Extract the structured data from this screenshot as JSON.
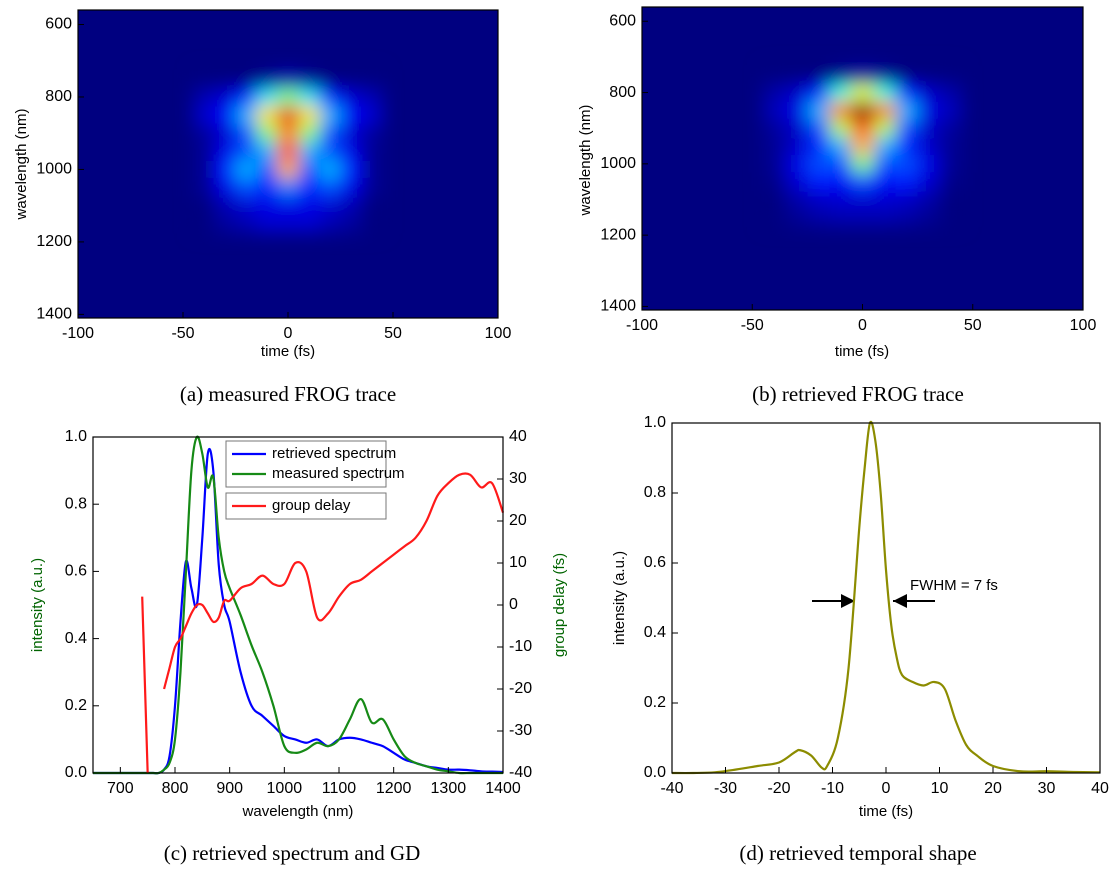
{
  "chart_data": [
    {
      "type": "heatmap",
      "caption": "(a) measured FROG trace",
      "x_label": "time (fs)",
      "y_label": "wavelength (nm)",
      "colormap": "jet",
      "y_reversed": true,
      "xlim": [
        -100,
        100
      ],
      "xticks": [
        -100,
        -50,
        0,
        50,
        100
      ],
      "ylim": [
        560,
        1410
      ],
      "yticks": [
        600,
        800,
        1000,
        1200,
        1400
      ],
      "x": [
        -40,
        -30,
        -20,
        -10,
        0,
        10,
        20,
        30,
        40
      ],
      "y": [
        750,
        800,
        850,
        900,
        950,
        1000,
        1050,
        1100,
        1150
      ],
      "z": [
        [
          0,
          0,
          0,
          0.02,
          0.05,
          0.02,
          0,
          0,
          0
        ],
        [
          0.05,
          0.08,
          0.15,
          0.35,
          0.5,
          0.35,
          0.15,
          0.08,
          0.05
        ],
        [
          0.08,
          0.12,
          0.3,
          0.65,
          0.9,
          0.65,
          0.3,
          0.12,
          0.08
        ],
        [
          0.03,
          0.08,
          0.2,
          0.5,
          0.75,
          0.5,
          0.2,
          0.08,
          0.03
        ],
        [
          0.02,
          0.1,
          0.2,
          0.3,
          0.8,
          0.3,
          0.2,
          0.1,
          0.02
        ],
        [
          0.02,
          0.15,
          0.3,
          0.2,
          0.7,
          0.2,
          0.3,
          0.15,
          0.02
        ],
        [
          0.02,
          0.1,
          0.2,
          0.15,
          0.25,
          0.15,
          0.2,
          0.1,
          0.02
        ],
        [
          0,
          0.05,
          0.08,
          0.1,
          0.1,
          0.1,
          0.08,
          0.05,
          0
        ],
        [
          0,
          0.03,
          0.05,
          0.08,
          0.08,
          0.08,
          0.05,
          0.03,
          0
        ]
      ]
    },
    {
      "type": "heatmap",
      "caption": "(b) retrieved FROG trace",
      "x_label": "time (fs)",
      "y_label": "wavelength (nm)",
      "colormap": "jet",
      "y_reversed": true,
      "xlim": [
        -100,
        100
      ],
      "xticks": [
        -100,
        -50,
        0,
        50,
        100
      ],
      "ylim": [
        560,
        1410
      ],
      "yticks": [
        600,
        800,
        1000,
        1200,
        1400
      ],
      "x": [
        -40,
        -30,
        -20,
        -10,
        0,
        10,
        20,
        30,
        40
      ],
      "y": [
        750,
        800,
        850,
        900,
        950,
        1000,
        1050,
        1100,
        1150
      ],
      "z": [
        [
          0,
          0,
          0,
          0.02,
          0.04,
          0.02,
          0,
          0,
          0
        ],
        [
          0.04,
          0.07,
          0.15,
          0.4,
          0.6,
          0.4,
          0.15,
          0.07,
          0.04
        ],
        [
          0.06,
          0.1,
          0.3,
          0.75,
          1.0,
          0.75,
          0.3,
          0.1,
          0.06
        ],
        [
          0.03,
          0.07,
          0.2,
          0.55,
          0.8,
          0.55,
          0.2,
          0.07,
          0.03
        ],
        [
          0.02,
          0.07,
          0.15,
          0.3,
          0.7,
          0.3,
          0.15,
          0.07,
          0.02
        ],
        [
          0.02,
          0.1,
          0.2,
          0.2,
          0.5,
          0.2,
          0.2,
          0.1,
          0.02
        ],
        [
          0.01,
          0.08,
          0.15,
          0.12,
          0.2,
          0.12,
          0.15,
          0.08,
          0.01
        ],
        [
          0,
          0.04,
          0.07,
          0.08,
          0.08,
          0.08,
          0.07,
          0.04,
          0
        ],
        [
          0,
          0.02,
          0.04,
          0.05,
          0.05,
          0.05,
          0.04,
          0.02,
          0
        ]
      ]
    },
    {
      "type": "line",
      "caption": "(c) retrieved spectrum and GD",
      "x_label": "wavelength (nm)",
      "y_label": "intensity (a.u.)",
      "y2_label": "group delay (fs)",
      "xlim": [
        650,
        1400
      ],
      "xticks": [
        700,
        800,
        900,
        1000,
        1100,
        1200,
        1300,
        1400
      ],
      "ylim": [
        0,
        1
      ],
      "yticks": [
        {
          "value": 0,
          "label": "0.0"
        },
        {
          "value": 0.2,
          "label": "0.2"
        },
        {
          "value": 0.4,
          "label": "0.4"
        },
        {
          "value": 0.6,
          "label": "0.6"
        },
        {
          "value": 0.8,
          "label": "0.8"
        },
        {
          "value": 1,
          "label": "1.0"
        }
      ],
      "y2lim": [
        -40,
        40
      ],
      "y2ticks": [
        -40,
        -30,
        -20,
        -10,
        0,
        10,
        20,
        30,
        40
      ],
      "x": [
        650,
        700,
        740,
        750,
        760,
        770,
        780,
        790,
        800,
        810,
        820,
        830,
        840,
        850,
        860,
        870,
        880,
        890,
        900,
        920,
        940,
        960,
        980,
        1000,
        1020,
        1040,
        1060,
        1080,
        1100,
        1120,
        1140,
        1160,
        1180,
        1200,
        1220,
        1240,
        1260,
        1280,
        1300,
        1320,
        1340,
        1360,
        1380,
        1400
      ],
      "series": [
        {
          "name": "retrieved spectrum",
          "color": "#0000ff",
          "values": [
            0,
            0,
            0,
            0,
            0,
            0,
            0.01,
            0.05,
            0.2,
            0.45,
            0.63,
            0.55,
            0.5,
            0.7,
            0.95,
            0.9,
            0.62,
            0.5,
            0.45,
            0.3,
            0.2,
            0.17,
            0.14,
            0.11,
            0.1,
            0.09,
            0.1,
            0.08,
            0.1,
            0.105,
            0.1,
            0.09,
            0.08,
            0.06,
            0.04,
            0.03,
            0.02,
            0.015,
            0.01,
            0.01,
            0.008,
            0.005,
            0.004,
            0.003
          ]
        },
        {
          "name": "measured spectrum",
          "color": "#168a16",
          "values": [
            0,
            0,
            0,
            0,
            0,
            0,
            0.01,
            0.03,
            0.1,
            0.3,
            0.6,
            0.9,
            1.0,
            0.95,
            0.85,
            0.88,
            0.7,
            0.6,
            0.55,
            0.47,
            0.38,
            0.3,
            0.2,
            0.08,
            0.06,
            0.07,
            0.09,
            0.08,
            0.1,
            0.16,
            0.22,
            0.15,
            0.16,
            0.1,
            0.05,
            0.03,
            0.02,
            0.01,
            0.005,
            0,
            0,
            0,
            0,
            0
          ]
        },
        {
          "name": "group delay",
          "color": "#ff1a1a",
          "axis": "y2",
          "values": [
            null,
            null,
            2,
            -40,
            null,
            null,
            -20,
            -15,
            -10,
            -8,
            -5,
            -2,
            0,
            0,
            -2,
            -4,
            -3,
            1,
            1,
            4,
            5,
            7,
            5,
            5,
            10,
            8,
            -3,
            -2,
            2,
            5,
            6,
            8,
            10,
            12,
            14,
            16,
            20,
            26,
            29,
            31,
            31,
            28,
            29,
            22
          ]
        }
      ]
    },
    {
      "type": "line",
      "caption": "(d) retrieved temporal shape",
      "x_label": "time (fs)",
      "y_label": "intensity (a.u.)",
      "annotation": "FWHM = 7 fs",
      "xlim": [
        -40,
        40
      ],
      "xticks": [
        -40,
        -30,
        -20,
        -10,
        0,
        10,
        20,
        30,
        40
      ],
      "ylim": [
        0,
        1
      ],
      "yticks": [
        {
          "value": 0,
          "label": "0.0"
        },
        {
          "value": 0.2,
          "label": "0.2"
        },
        {
          "value": 0.4,
          "label": "0.4"
        },
        {
          "value": 0.6,
          "label": "0.6"
        },
        {
          "value": 0.8,
          "label": "0.8"
        },
        {
          "value": 1,
          "label": "1.0"
        }
      ],
      "x": [
        -40,
        -36,
        -32,
        -28,
        -24,
        -20,
        -17,
        -16,
        -14,
        -12,
        -11,
        -9,
        -7,
        -5,
        -4,
        -3,
        -2,
        -1,
        0,
        1,
        2,
        3,
        5,
        7,
        9,
        11,
        13,
        15,
        17,
        20,
        25,
        30,
        35,
        40
      ],
      "series": [
        {
          "color": "#8c8c00",
          "values": [
            0,
            0,
            0.002,
            0.01,
            0.02,
            0.03,
            0.06,
            0.065,
            0.05,
            0.015,
            0.02,
            0.1,
            0.3,
            0.7,
            0.87,
            1.0,
            0.95,
            0.8,
            0.58,
            0.42,
            0.33,
            0.28,
            0.26,
            0.25,
            0.26,
            0.24,
            0.15,
            0.08,
            0.05,
            0.02,
            0.005,
            0.005,
            0.003,
            0.002
          ]
        }
      ]
    }
  ]
}
